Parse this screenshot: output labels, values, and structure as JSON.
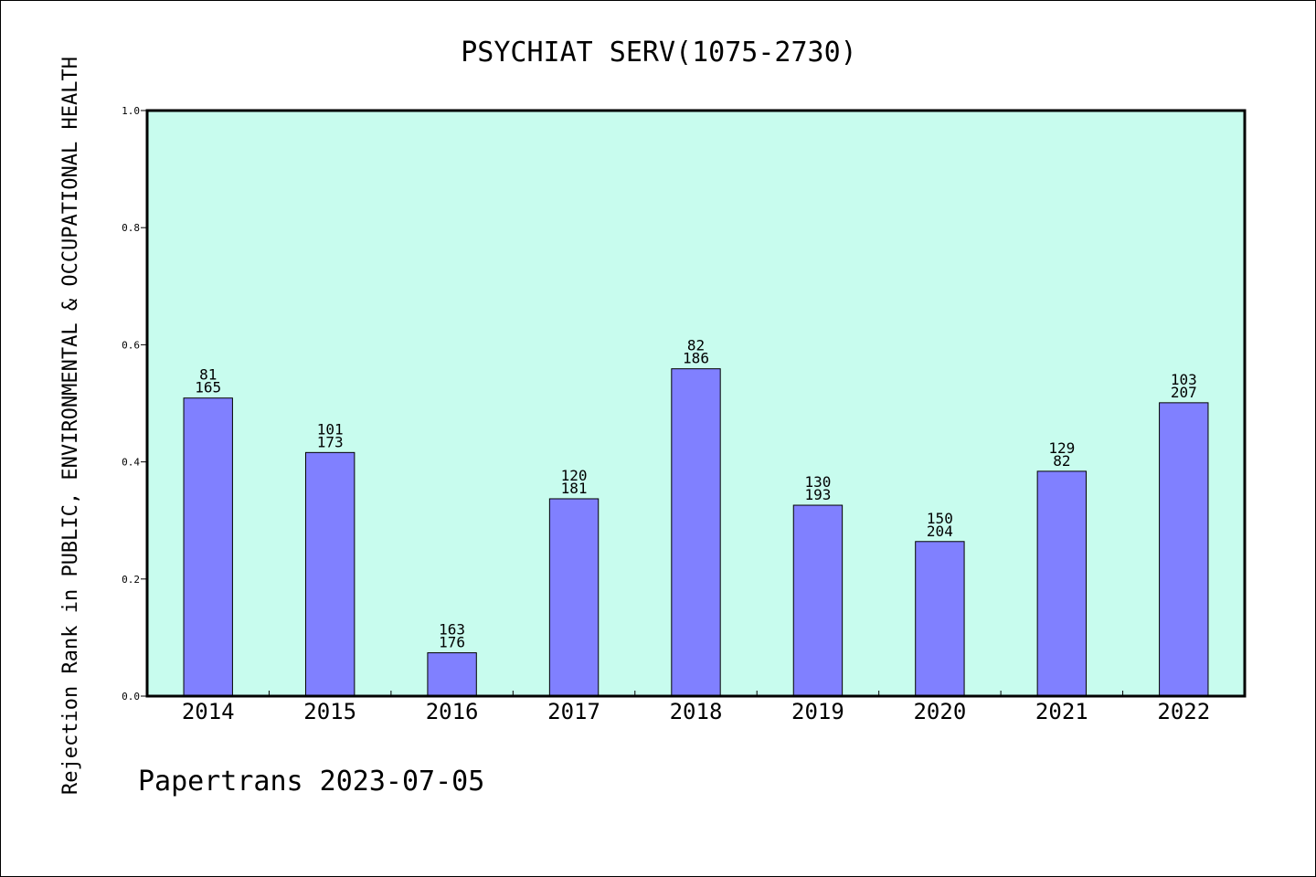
{
  "chart_data": {
    "type": "bar",
    "title": "PSYCHIAT SERV(1075-2730)",
    "xlabel": "",
    "ylabel": "Rejection Rank in PUBLIC, ENVIRONMENTAL & OCCUPATIONAL HEALTH",
    "ylim": [
      0,
      1.0
    ],
    "yticks": [
      "0.0",
      "0.2",
      "0.4",
      "0.6",
      "0.8",
      "1.0"
    ],
    "categories": [
      "2014",
      "2015",
      "2016",
      "2017",
      "2018",
      "2019",
      "2020",
      "2021",
      "2022"
    ],
    "values": [
      0.509,
      0.416,
      0.074,
      0.337,
      0.559,
      0.326,
      0.264,
      0.384,
      0.501
    ],
    "bar_labels": [
      [
        "81",
        "165"
      ],
      [
        "101",
        "173"
      ],
      [
        "163",
        "176"
      ],
      [
        "120",
        "181"
      ],
      [
        "82",
        "186"
      ],
      [
        "130",
        "193"
      ],
      [
        "150",
        "204"
      ],
      [
        "129",
        "82"
      ],
      [
        "103",
        "207"
      ]
    ],
    "grid": false,
    "colors": {
      "bar": "#8080ff",
      "plot_background": "#c8fcee",
      "axis": "#000000"
    }
  },
  "footer": "Papertrans 2023-07-05"
}
